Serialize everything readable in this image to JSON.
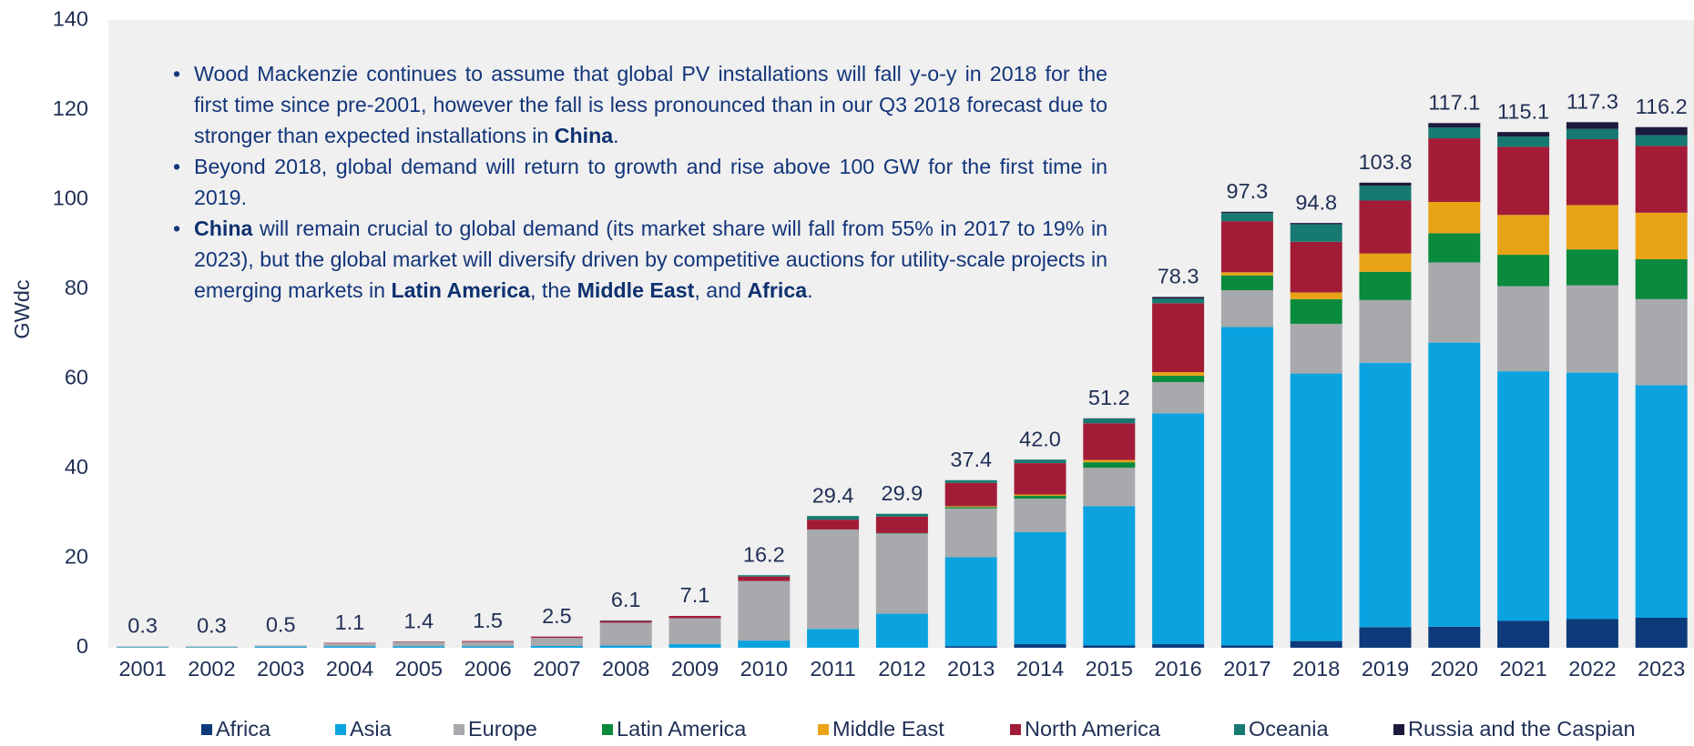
{
  "chart_data": {
    "type": "stacked_bar",
    "y_label": "GWdc",
    "ylim": [
      0,
      140
    ],
    "yticks": [
      0,
      20,
      40,
      60,
      80,
      100,
      120,
      140
    ],
    "grid": false,
    "legend": "bottom",
    "categories": [
      "2001",
      "2002",
      "2003",
      "2004",
      "2005",
      "2006",
      "2007",
      "2008",
      "2009",
      "2010",
      "2011",
      "2012",
      "2013",
      "2014",
      "2015",
      "2016",
      "2017",
      "2018",
      "2019",
      "2020",
      "2021",
      "2022",
      "2023"
    ],
    "series": [
      {
        "name": "Africa",
        "color": "#0d3a7a",
        "values": [
          0,
          0,
          0,
          0,
          0,
          0,
          0,
          0,
          0,
          0,
          0,
          0,
          0.3,
          0.8,
          0.5,
          0.8,
          0.5,
          1.5,
          4.6,
          4.7,
          6.0,
          6.4,
          6.7
        ]
      },
      {
        "name": "Asia",
        "color": "#0aa3e0",
        "values": [
          0.1,
          0.1,
          0.2,
          0.3,
          0.3,
          0.3,
          0.4,
          0.5,
          0.8,
          1.6,
          4.2,
          7.6,
          19.9,
          25.0,
          31.1,
          51.5,
          71.1,
          59.7,
          59.0,
          63.4,
          55.7,
          55.0,
          51.9
        ]
      },
      {
        "name": "Europe",
        "color": "#a7a9ac",
        "values": [
          0.2,
          0.2,
          0.3,
          0.7,
          1.0,
          1.0,
          1.8,
          5.1,
          5.8,
          13.3,
          22.2,
          17.9,
          10.9,
          7.5,
          8.6,
          7.0,
          8.2,
          11.1,
          14.0,
          17.9,
          19.0,
          19.5,
          19.2
        ]
      },
      {
        "name": "Latin America",
        "color": "#0a8a3c",
        "values": [
          0,
          0,
          0,
          0,
          0,
          0,
          0,
          0,
          0,
          0,
          0,
          0.1,
          0.3,
          0.6,
          1.2,
          1.4,
          3.3,
          5.5,
          6.3,
          6.5,
          7.0,
          8.0,
          8.9
        ]
      },
      {
        "name": "Middle East",
        "color": "#e8a317",
        "values": [
          0,
          0,
          0,
          0,
          0,
          0,
          0,
          0,
          0,
          0,
          0,
          0,
          0.2,
          0.3,
          0.5,
          0.8,
          0.7,
          1.5,
          4.1,
          7.0,
          8.9,
          9.9,
          10.4
        ]
      },
      {
        "name": "North America",
        "color": "#a31c37",
        "values": [
          0,
          0,
          0,
          0.1,
          0.1,
          0.2,
          0.3,
          0.4,
          0.5,
          1.0,
          2.2,
          3.7,
          5.2,
          7.0,
          8.2,
          15.4,
          11.4,
          11.3,
          11.8,
          14.2,
          15.2,
          14.7,
          14.9
        ]
      },
      {
        "name": "Oceania",
        "color": "#167a72",
        "values": [
          0,
          0,
          0,
          0,
          0,
          0,
          0,
          0.1,
          0,
          0.3,
          0.8,
          0.6,
          0.6,
          0.8,
          1.0,
          1.0,
          1.8,
          3.9,
          3.3,
          2.4,
          2.3,
          2.3,
          2.4
        ]
      },
      {
        "name": "Russia and the Caspian",
        "color": "#1c1a3d",
        "values": [
          0,
          0,
          0,
          0,
          0,
          0,
          0,
          0,
          0,
          0,
          0,
          0,
          0,
          0,
          0.1,
          0.4,
          0.3,
          0.3,
          0.7,
          1.0,
          1.0,
          1.5,
          1.8
        ]
      }
    ],
    "totals": {
      "values": [
        0.3,
        0.3,
        0.5,
        1.1,
        1.4,
        1.5,
        2.5,
        6.1,
        7.1,
        16.2,
        29.4,
        29.9,
        37.4,
        42.0,
        51.2,
        78.3,
        97.3,
        94.8,
        103.8,
        117.1,
        115.1,
        117.3,
        116.2
      ],
      "value_labels": [
        "0.3",
        "0.3",
        "0.5",
        "1.1",
        "1.4",
        "1.5",
        "2.5",
        "6.1",
        "7.1",
        "16.2",
        "29.4",
        "29.9",
        "37.4",
        "42.0",
        "51.2",
        "78.3",
        "97.3",
        "94.8",
        "103.8",
        "117.1",
        "115.1",
        "117.3",
        "116.2"
      ]
    },
    "annotations": [
      [
        {
          "text": "Wood Mackenzie continues to assume that global PV installations will fall y-o-y in 2018 for the first time since pre-2001, however the fall is less pronounced than in our Q3 2018 forecast due to stronger than expected installations in "
        },
        {
          "text": "China",
          "bold": true
        },
        {
          "text": "."
        }
      ],
      [
        {
          "text": "Beyond 2018, global demand will return to growth and rise above 100 GW for the first time in 2019."
        }
      ],
      [
        {
          "text": "China",
          "bold": true
        },
        {
          "text": " will remain crucial to global demand (its market share will fall from 55% in 2017 to 19% in 2023), but the global market will diversify driven by competitive auctions for utility-scale projects in emerging markets in "
        },
        {
          "text": "Latin America",
          "bold": true
        },
        {
          "text": ", the "
        },
        {
          "text": "Middle East",
          "bold": true
        },
        {
          "text": ", and "
        },
        {
          "text": "Africa",
          "bold": true
        },
        {
          "text": "."
        }
      ]
    ]
  }
}
